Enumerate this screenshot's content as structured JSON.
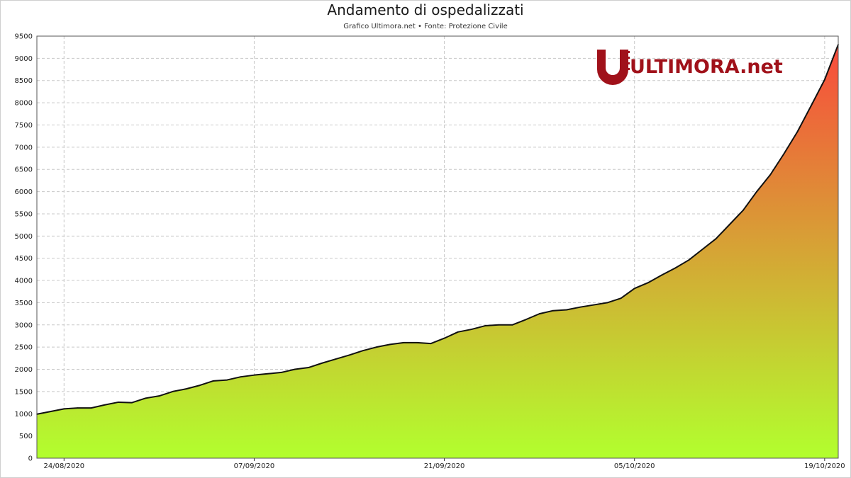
{
  "chart_data": {
    "type": "area",
    "title": "Andamento di ospedalizzati",
    "subtitle": "Grafico Ultimora.net • Fonte: Protezione Civile",
    "xlabel": "",
    "ylabel": "",
    "ylim": [
      0,
      9500
    ],
    "yticks": [
      0,
      500,
      1000,
      1500,
      2000,
      2500,
      3000,
      3500,
      4000,
      4500,
      5000,
      5500,
      6000,
      6500,
      7000,
      7500,
      8000,
      8500,
      9000,
      9500
    ],
    "xtick_labels": [
      "24/08/2020",
      "07/09/2020",
      "21/09/2020",
      "05/10/2020",
      "19/10/2020"
    ],
    "grid": true,
    "colors": {
      "low": "#b2ff2e",
      "high": "#f94a3c",
      "line": "#111111"
    },
    "series": [
      {
        "x": [
          "22/08/2020",
          "23/08/2020",
          "24/08/2020",
          "25/08/2020",
          "26/08/2020",
          "27/08/2020",
          "28/08/2020",
          "29/08/2020",
          "30/08/2020",
          "31/08/2020",
          "01/09/2020",
          "02/09/2020",
          "03/09/2020",
          "04/09/2020",
          "05/09/2020",
          "06/09/2020",
          "07/09/2020",
          "08/09/2020",
          "09/09/2020",
          "10/09/2020",
          "11/09/2020",
          "12/09/2020",
          "13/09/2020",
          "14/09/2020",
          "15/09/2020",
          "16/09/2020",
          "17/09/2020",
          "18/09/2020",
          "19/09/2020",
          "20/09/2020",
          "21/09/2020",
          "22/09/2020",
          "23/09/2020",
          "24/09/2020",
          "25/09/2020",
          "26/09/2020",
          "27/09/2020",
          "28/09/2020",
          "29/09/2020",
          "30/09/2020",
          "01/10/2020",
          "02/10/2020",
          "03/10/2020",
          "04/10/2020",
          "05/10/2020",
          "06/10/2020",
          "07/10/2020",
          "08/10/2020",
          "09/10/2020",
          "10/10/2020",
          "11/10/2020",
          "12/10/2020",
          "13/10/2020",
          "14/10/2020",
          "15/10/2020",
          "16/10/2020",
          "17/10/2020",
          "18/10/2020",
          "19/10/2020",
          "20/10/2020"
        ],
        "values": [
          990,
          1050,
          1110,
          1130,
          1130,
          1200,
          1260,
          1250,
          1350,
          1400,
          1500,
          1560,
          1640,
          1740,
          1760,
          1830,
          1870,
          1900,
          1930,
          2000,
          2040,
          2140,
          2230,
          2320,
          2420,
          2500,
          2560,
          2600,
          2600,
          2580,
          2700,
          2840,
          2900,
          2980,
          3000,
          3000,
          3120,
          3250,
          3320,
          3340,
          3400,
          3450,
          3500,
          3600,
          3820,
          3950,
          4120,
          4280,
          4460,
          4700,
          4940,
          5260,
          5580,
          6000,
          6380,
          6850,
          7350,
          7930,
          8520,
          9310
        ]
      }
    ]
  },
  "logo": {
    "text": "ULTIMORA.net"
  }
}
